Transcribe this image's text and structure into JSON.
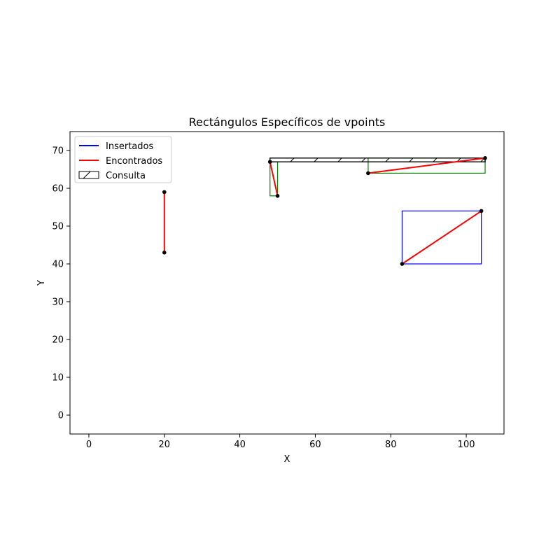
{
  "chart_data": {
    "type": "scatter",
    "title": "Rectángulos Específicos de vpoints",
    "xlabel": "X",
    "ylabel": "Y",
    "xlim": [
      -5,
      110
    ],
    "ylim": [
      -5,
      75
    ],
    "xticks": [
      0,
      20,
      40,
      60,
      80,
      100
    ],
    "yticks": [
      0,
      10,
      20,
      30,
      40,
      50,
      60,
      70
    ],
    "grid": false,
    "legend": {
      "placement": "top-left",
      "entries": [
        {
          "label": "Insertados",
          "kind": "line",
          "color": "#0000ff"
        },
        {
          "label": "Encontrados",
          "kind": "line",
          "color": "#ff0000"
        },
        {
          "label": "Consulta",
          "kind": "hatched-box",
          "color": "#000000"
        }
      ]
    },
    "query_rect": {
      "x0": 48,
      "y0": 67,
      "x1": 105,
      "y1": 68,
      "hatch": "/",
      "color": "#000000"
    },
    "inserted_rects": [
      {
        "x0": 83,
        "y0": 40,
        "x1": 104,
        "y1": 54,
        "color": "#0000ff"
      }
    ],
    "region_rects": [
      {
        "x0": 48,
        "y0": 58,
        "x1": 50,
        "y1": 67,
        "color": "#008000"
      },
      {
        "x0": 74,
        "y0": 64,
        "x1": 105,
        "y1": 68,
        "color": "#008000"
      }
    ],
    "found_segments": [
      {
        "x0": 20,
        "y0": 43,
        "x1": 20,
        "y1": 59,
        "color": "#ff0000"
      },
      {
        "x0": 48,
        "y0": 67,
        "x1": 50,
        "y1": 58,
        "color": "#ff0000"
      },
      {
        "x0": 74,
        "y0": 64,
        "x1": 105,
        "y1": 68,
        "color": "#ff0000"
      },
      {
        "x0": 83,
        "y0": 40,
        "x1": 104,
        "y1": 54,
        "color": "#ff0000"
      }
    ],
    "points": [
      {
        "x": 20,
        "y": 59
      },
      {
        "x": 20,
        "y": 43
      },
      {
        "x": 48,
        "y": 67
      },
      {
        "x": 50,
        "y": 58
      },
      {
        "x": 74,
        "y": 64
      },
      {
        "x": 105,
        "y": 68
      },
      {
        "x": 83,
        "y": 40
      },
      {
        "x": 104,
        "y": 54
      }
    ]
  }
}
